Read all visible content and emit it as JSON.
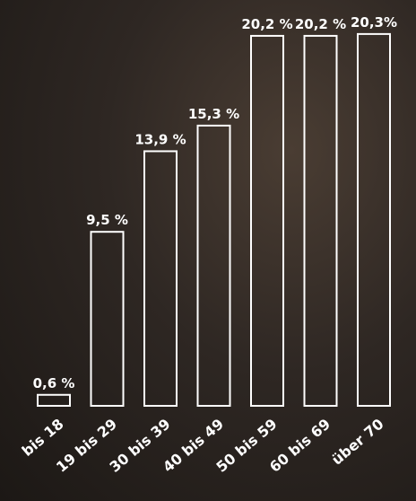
{
  "chart_data": {
    "type": "bar",
    "categories": [
      "bis 18",
      "19 bis 29",
      "30 bis 39",
      "40 bis 49",
      "50 bis 59",
      "60 bis 69",
      "über 70"
    ],
    "values": [
      0.6,
      9.5,
      13.9,
      15.3,
      20.2,
      20.2,
      20.3
    ],
    "value_labels": [
      "0,6 %",
      "9,5 %",
      "13,9 %",
      "15,3 %",
      "20,2 %",
      "20,2 %",
      "20,3%"
    ],
    "color": "#ffffff"
  }
}
